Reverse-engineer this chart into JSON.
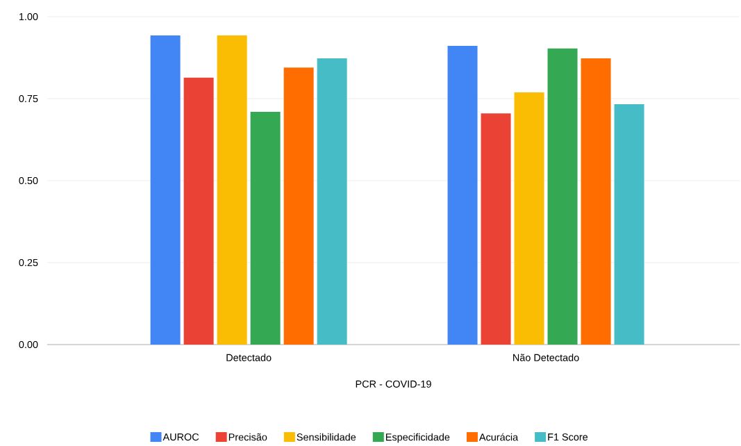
{
  "chart_data": {
    "type": "bar",
    "xlabel": "PCR - COVID-19",
    "categories": [
      "Detectado",
      "Não Detectado"
    ],
    "series": [
      {
        "name": "AUROC",
        "color": "#4285f4",
        "values": [
          0.943,
          0.911
        ]
      },
      {
        "name": "Precisão",
        "color": "#ea4335",
        "values": [
          0.814,
          0.705
        ]
      },
      {
        "name": "Sensibilidade",
        "color": "#fbbc04",
        "values": [
          0.943,
          0.769
        ]
      },
      {
        "name": "Especificidade",
        "color": "#34a853",
        "values": [
          0.71,
          0.903
        ]
      },
      {
        "name": "Acurácia",
        "color": "#ff6d01",
        "values": [
          0.845,
          0.873
        ]
      },
      {
        "name": "F1 Score",
        "color": "#46bdc6",
        "values": [
          0.873,
          0.733
        ]
      }
    ],
    "ylim": [
      0,
      1
    ],
    "yticks": [
      {
        "value": 0,
        "label": "0.00"
      },
      {
        "value": 0.25,
        "label": "0.25"
      },
      {
        "value": 0.5,
        "label": "0.50"
      },
      {
        "value": 0.75,
        "label": "0.75"
      },
      {
        "value": 1,
        "label": "1.00"
      }
    ],
    "grid": "y",
    "legend": "bottom"
  }
}
